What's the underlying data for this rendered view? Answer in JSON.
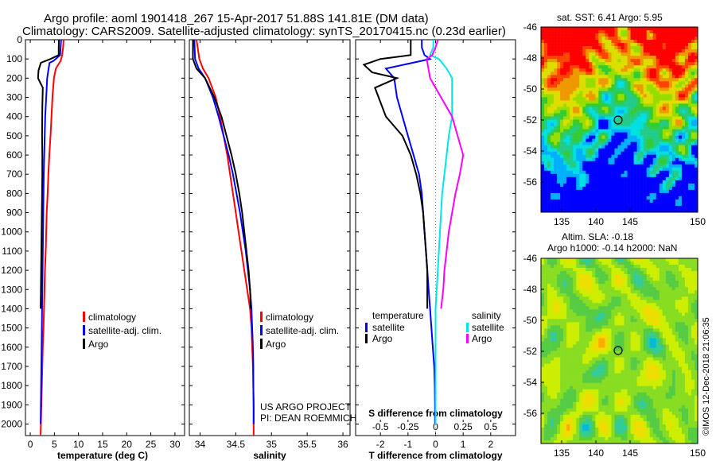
{
  "header": {
    "line1": "Argo profile: aoml 1901418_267 15-Apr-2017 51.88S 141.81E (DM data)",
    "line2": "Climatology: CARS2009. Satellite-adjusted climatology: synTS_20170415.nc (0.23d earlier)"
  },
  "colors": {
    "climatology": "#ff0000",
    "satellite": "#0000ff",
    "argo": "#000000",
    "sal_sat": "#00e5e5",
    "sal_argo": "#ff00ff"
  },
  "credits": {
    "line1": "US ARGO PROJECT",
    "line2": "PI: DEAN ROEMMICH"
  },
  "imos_stamp": "©IMOS 12-Dec-2018 21:06:35",
  "legend_t": {
    "climatology": "climatology",
    "satellite": "satellite-adj. clim.",
    "argo": "Argo"
  },
  "legend_diff": {
    "temperature": "temperature",
    "salinity": "salinity",
    "satellite": "satellite",
    "argo": "Argo"
  },
  "sst_map": {
    "title": "sat. SST: 6.41 Argo: 5.95",
    "xticks": [
      "135",
      "140",
      "145",
      "150"
    ],
    "yticks": [
      "-46",
      "-48",
      "-50",
      "-52",
      "-54",
      "-56"
    ]
  },
  "sla_map": {
    "title1": "Altim. SLA: -0.18",
    "title2": "Argo h1000: -0.14 h2000: NaN",
    "xticks": [
      "135",
      "140",
      "145",
      "150"
    ],
    "yticks": [
      "-46",
      "-48",
      "-50",
      "-52",
      "-54",
      "-56"
    ]
  },
  "chart_data": [
    {
      "type": "line",
      "title": "",
      "xlabel": "temperature (deg C)",
      "ylabel": "",
      "xlim": [
        -1,
        32
      ],
      "ylim": [
        2060,
        0
      ],
      "yticks": [
        "0",
        "100",
        "200",
        "300",
        "400",
        "500",
        "600",
        "700",
        "800",
        "900",
        "1000",
        "1100",
        "1200",
        "1300",
        "1400",
        "1500",
        "1600",
        "1700",
        "1800",
        "1900",
        "2000"
      ],
      "xticks": [
        "0",
        "5",
        "10",
        "15",
        "20",
        "25",
        "30"
      ],
      "series": [
        {
          "name": "climatology",
          "points": [
            [
              6.9,
              0
            ],
            [
              6.8,
              40
            ],
            [
              6.6,
              80
            ],
            [
              6.3,
              110
            ],
            [
              5.8,
              130
            ],
            [
              5.3,
              150
            ],
            [
              4.9,
              200
            ],
            [
              4.6,
              300
            ],
            [
              4.4,
              400
            ],
            [
              4.2,
              500
            ],
            [
              3.95,
              600
            ],
            [
              3.75,
              700
            ],
            [
              3.6,
              800
            ],
            [
              3.4,
              900
            ],
            [
              3.3,
              1000
            ],
            [
              3.2,
              1100
            ],
            [
              3.05,
              1200
            ],
            [
              2.95,
              1300
            ],
            [
              2.85,
              1400
            ],
            [
              2.75,
              1500
            ],
            [
              2.6,
              1600
            ],
            [
              2.5,
              1700
            ],
            [
              2.4,
              1800
            ],
            [
              2.3,
              1900
            ],
            [
              2.2,
              2000
            ],
            [
              2.15,
              2060
            ]
          ]
        },
        {
          "name": "satellite-adj. clim.",
          "points": [
            [
              6.4,
              0
            ],
            [
              6.3,
              40
            ],
            [
              6.2,
              80
            ],
            [
              4.8,
              110
            ],
            [
              4.0,
              120
            ],
            [
              3.8,
              150
            ],
            [
              3.5,
              200
            ],
            [
              3.3,
              300
            ],
            [
              3.1,
              400
            ],
            [
              3.0,
              500
            ],
            [
              2.9,
              600
            ],
            [
              2.8,
              700
            ],
            [
              2.75,
              800
            ],
            [
              2.7,
              900
            ],
            [
              2.65,
              1000
            ],
            [
              2.6,
              1100
            ],
            [
              2.55,
              1200
            ],
            [
              2.5,
              1300
            ],
            [
              2.45,
              1400
            ],
            [
              2.4,
              1500
            ],
            [
              2.35,
              1600
            ],
            [
              2.3,
              1700
            ],
            [
              2.25,
              1800
            ],
            [
              2.2,
              1900
            ],
            [
              2.15,
              2000
            ]
          ]
        },
        {
          "name": "Argo",
          "points": [
            [
              5.95,
              0
            ],
            [
              5.9,
              40
            ],
            [
              5.9,
              80
            ],
            [
              4.2,
              100
            ],
            [
              2.2,
              120
            ],
            [
              1.7,
              160
            ],
            [
              1.6,
              200
            ],
            [
              2.0,
              220
            ],
            [
              2.6,
              250
            ],
            [
              2.5,
              350
            ],
            [
              2.45,
              500
            ],
            [
              2.5,
              600
            ],
            [
              2.5,
              700
            ],
            [
              2.45,
              800
            ],
            [
              2.4,
              900
            ],
            [
              2.35,
              1000
            ],
            [
              2.3,
              1100
            ],
            [
              2.25,
              1200
            ],
            [
              2.2,
              1300
            ],
            [
              2.15,
              1400
            ]
          ]
        }
      ]
    },
    {
      "type": "line",
      "title": "",
      "xlabel": "salinity",
      "ylabel": "",
      "xlim": [
        33.85,
        36.1
      ],
      "ylim": [
        2060,
        0
      ],
      "xticks": [
        "34",
        "34.5",
        "35",
        "35.5",
        "36"
      ],
      "series": [
        {
          "name": "climatology",
          "points": [
            [
              33.95,
              0
            ],
            [
              33.99,
              100
            ],
            [
              34.04,
              150
            ],
            [
              34.12,
              200
            ],
            [
              34.22,
              300
            ],
            [
              34.28,
              400
            ],
            [
              34.33,
              500
            ],
            [
              34.38,
              600
            ],
            [
              34.42,
              700
            ],
            [
              34.46,
              800
            ],
            [
              34.5,
              900
            ],
            [
              34.54,
              1000
            ],
            [
              34.58,
              1100
            ],
            [
              34.62,
              1200
            ],
            [
              34.66,
              1300
            ],
            [
              34.7,
              1400
            ],
            [
              34.72,
              1500
            ],
            [
              34.73,
              1600
            ],
            [
              34.74,
              1700
            ],
            [
              34.745,
              1800
            ],
            [
              34.75,
              1900
            ],
            [
              34.75,
              2000
            ],
            [
              34.75,
              2060
            ]
          ]
        },
        {
          "name": "satellite-adj. clim.",
          "points": [
            [
              33.92,
              0
            ],
            [
              33.93,
              100
            ],
            [
              33.98,
              150
            ],
            [
              34.07,
              200
            ],
            [
              34.18,
              300
            ],
            [
              34.26,
              400
            ],
            [
              34.33,
              500
            ],
            [
              34.4,
              600
            ],
            [
              34.46,
              700
            ],
            [
              34.51,
              800
            ],
            [
              34.56,
              900
            ],
            [
              34.6,
              1000
            ],
            [
              34.64,
              1100
            ],
            [
              34.67,
              1200
            ],
            [
              34.7,
              1300
            ],
            [
              34.72,
              1400
            ],
            [
              34.73,
              1500
            ],
            [
              34.74,
              1600
            ],
            [
              34.745,
              1700
            ],
            [
              34.745,
              1800
            ],
            [
              34.75,
              1900
            ],
            [
              34.75,
              2000
            ]
          ]
        },
        {
          "name": "Argo",
          "points": [
            [
              33.9,
              0
            ],
            [
              33.9,
              100
            ],
            [
              33.95,
              150
            ],
            [
              34.07,
              200
            ],
            [
              34.2,
              300
            ],
            [
              34.3,
              400
            ],
            [
              34.37,
              500
            ],
            [
              34.44,
              600
            ],
            [
              34.5,
              700
            ],
            [
              34.55,
              800
            ],
            [
              34.59,
              900
            ],
            [
              34.62,
              1000
            ],
            [
              34.65,
              1100
            ],
            [
              34.68,
              1200
            ],
            [
              34.7,
              1300
            ],
            [
              34.71,
              1400
            ]
          ]
        }
      ]
    },
    {
      "type": "line",
      "title": "",
      "xlabel": "T difference from climatology",
      "ylabel": "",
      "xlim": [
        -2.9,
        2.9
      ],
      "ylim": [
        2060,
        0
      ],
      "xticks": [
        "-2",
        "-1",
        "0",
        "1",
        "2"
      ],
      "secondary_axis": {
        "label": "S difference from climatology",
        "ticks": [
          "-0.5",
          "-0.25",
          "0",
          "0.25",
          "0.5"
        ]
      },
      "series": [
        {
          "name": "temperature satellite",
          "points": [
            [
              -0.5,
              0
            ],
            [
              -0.5,
              40
            ],
            [
              -0.4,
              80
            ],
            [
              -0.2,
              100
            ],
            [
              -1.8,
              150
            ],
            [
              -1.5,
              200
            ],
            [
              -1.4,
              300
            ],
            [
              -1.2,
              400
            ],
            [
              -1.0,
              500
            ],
            [
              -0.8,
              600
            ],
            [
              -0.6,
              700
            ],
            [
              -0.5,
              800
            ],
            [
              -0.45,
              900
            ],
            [
              -0.4,
              1000
            ],
            [
              -0.35,
              1100
            ],
            [
              -0.3,
              1200
            ],
            [
              -0.25,
              1300
            ],
            [
              -0.2,
              1400
            ],
            [
              -0.15,
              1500
            ],
            [
              -0.1,
              1600
            ],
            [
              -0.05,
              1700
            ],
            [
              -0.03,
              1800
            ],
            [
              -0.02,
              1900
            ],
            [
              -0.02,
              2000
            ]
          ]
        },
        {
          "name": "temperature Argo",
          "points": [
            [
              -0.9,
              0
            ],
            [
              -0.9,
              40
            ],
            [
              -0.9,
              80
            ],
            [
              -2.0,
              100
            ],
            [
              -2.6,
              130
            ],
            [
              -2.3,
              170
            ],
            [
              -1.4,
              200
            ],
            [
              -2.2,
              250
            ],
            [
              -1.8,
              400
            ],
            [
              -1.2,
              500
            ],
            [
              -0.9,
              600
            ],
            [
              -0.7,
              700
            ],
            [
              -0.55,
              800
            ],
            [
              -0.45,
              900
            ],
            [
              -0.4,
              1000
            ],
            [
              -0.35,
              1100
            ],
            [
              -0.3,
              1200
            ],
            [
              -0.3,
              1300
            ],
            [
              -0.3,
              1400
            ]
          ]
        },
        {
          "name": "salinity satellite",
          "points": [
            [
              -0.02,
              0
            ],
            [
              -0.02,
              40
            ],
            [
              -0.05,
              80
            ],
            [
              0.03,
              100
            ],
            [
              0.1,
              150
            ],
            [
              0.15,
              200
            ],
            [
              0.15,
              300
            ],
            [
              0.15,
              400
            ],
            [
              0.12,
              500
            ],
            [
              0.1,
              600
            ],
            [
              0.08,
              700
            ],
            [
              0.06,
              800
            ],
            [
              0.05,
              900
            ],
            [
              0.04,
              1000
            ],
            [
              0.03,
              1100
            ],
            [
              0.02,
              1200
            ],
            [
              0.01,
              1300
            ],
            [
              0.0,
              1400
            ],
            [
              0.0,
              1500
            ],
            [
              0.0,
              1600
            ],
            [
              0.0,
              1700
            ],
            [
              0.0,
              1800
            ],
            [
              0.0,
              1900
            ],
            [
              0.0,
              2000
            ]
          ]
        },
        {
          "name": "salinity Argo",
          "points": [
            [
              0.02,
              0
            ],
            [
              0.0,
              40
            ],
            [
              -0.03,
              80
            ],
            [
              -0.08,
              100
            ],
            [
              -0.05,
              200
            ],
            [
              0.05,
              300
            ],
            [
              0.15,
              400
            ],
            [
              0.2,
              500
            ],
            [
              0.25,
              600
            ],
            [
              0.22,
              700
            ],
            [
              0.18,
              800
            ],
            [
              0.15,
              900
            ],
            [
              0.12,
              1000
            ],
            [
              0.1,
              1100
            ],
            [
              0.08,
              1200
            ],
            [
              0.07,
              1300
            ],
            [
              0.05,
              1400
            ]
          ]
        }
      ]
    }
  ]
}
